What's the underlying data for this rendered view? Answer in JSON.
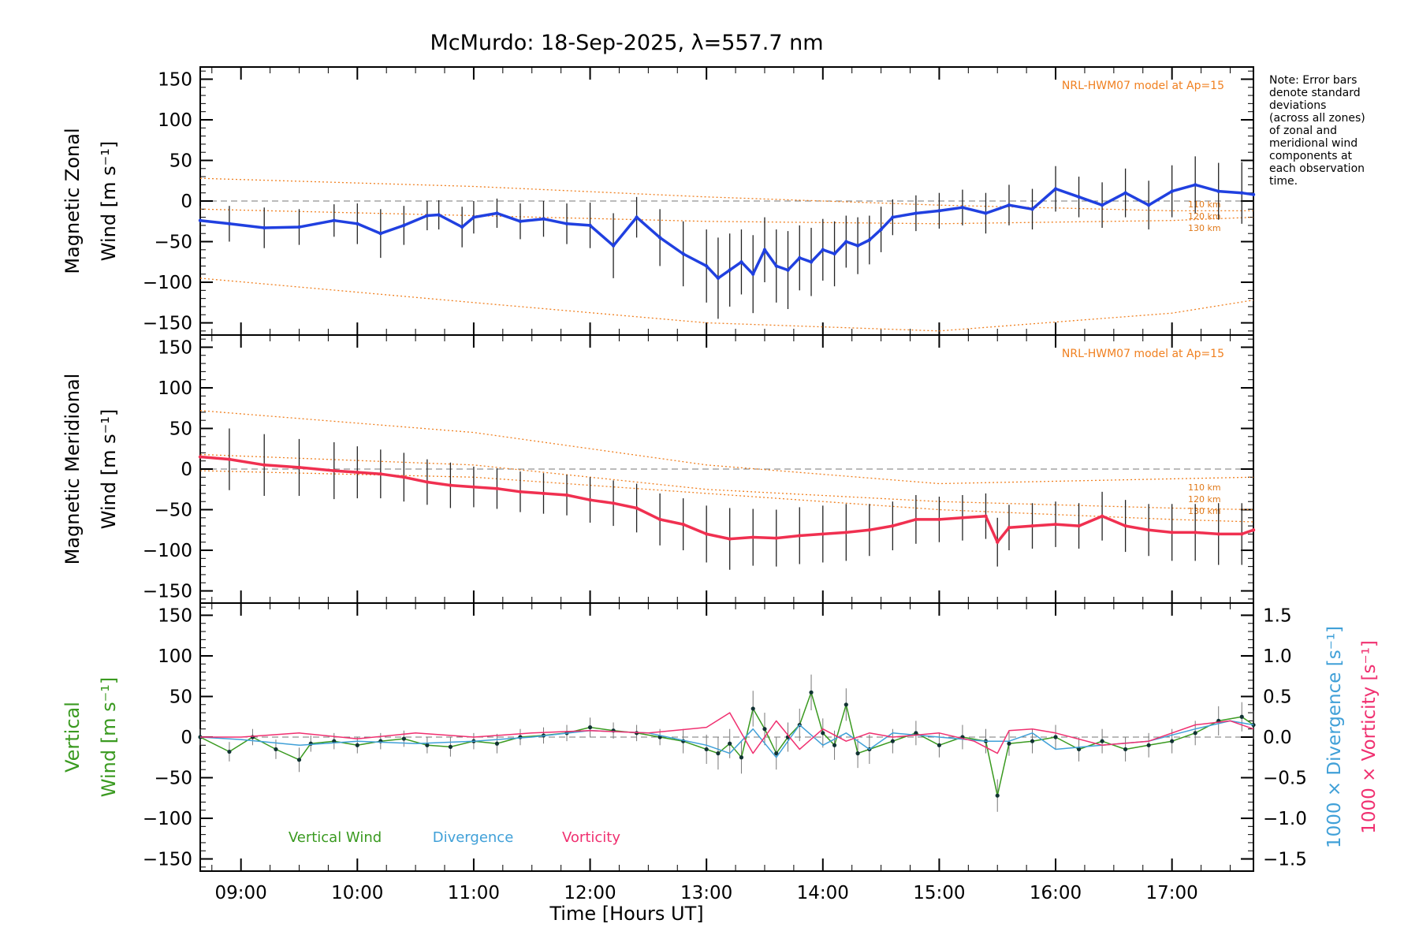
{
  "chart_data": {
    "type": "line",
    "title": "McMurdo: 18-Sep-2025, λ=557.7 nm",
    "xlabel": "Time [Hours UT]",
    "xlim": [
      8.65,
      17.7
    ],
    "x_ticks": [
      "09:00",
      "10:00",
      "11:00",
      "12:00",
      "13:00",
      "14:00",
      "15:00",
      "16:00",
      "17:00"
    ],
    "x_tick_values": [
      9,
      10,
      11,
      12,
      13,
      14,
      15,
      16,
      17
    ],
    "note": "Note: Error bars denote standard deviations (across all zones) of zonal and meridional wind components at each observation time.",
    "note_lines": [
      "Note: Error bars",
      "denote standard",
      "deviations",
      "(across all zones)",
      "of zonal and",
      "meridional wind",
      "components at",
      "each observation",
      "time."
    ],
    "y_ticks": [
      "150",
      "100",
      "50",
      "0",
      "−50",
      "−100",
      "−150"
    ],
    "y_tick_values": [
      150,
      100,
      50,
      0,
      -50,
      -100,
      -150
    ],
    "panels": [
      {
        "name": "zonal",
        "ylabel_line1": "Magnetic Zonal",
        "ylabel_line2": "Wind [m s⁻¹]",
        "ylim": [
          -165,
          165
        ],
        "model_label": "NRL-HWM07 model at Ap=15",
        "model_alt_labels": [
          "110 km",
          "120 km",
          "130 km"
        ],
        "model_curves": [
          {
            "name": "110 km",
            "x": [
              8.65,
              11,
              13,
              15,
              17,
              17.7
            ],
            "y": [
              28,
              18,
              5,
              -5,
              -12,
              -12
            ]
          },
          {
            "name": "120 km",
            "x": [
              8.65,
              11,
              13,
              15,
              17,
              17.7
            ],
            "y": [
              -10,
              -18,
              -25,
              -28,
              -24,
              -20
            ]
          },
          {
            "name": "130 km",
            "x": [
              8.65,
              11,
              13,
              15,
              17,
              17.7
            ],
            "y": [
              -95,
              -125,
              -150,
              -160,
              -138,
              -122
            ]
          }
        ],
        "series": [
          {
            "name": "Magnetic Zonal Wind",
            "color": "#2040e0",
            "x": [
              8.65,
              8.9,
              9.2,
              9.5,
              9.8,
              10.0,
              10.2,
              10.4,
              10.6,
              10.7,
              10.9,
              11.0,
              11.2,
              11.4,
              11.6,
              11.8,
              12.0,
              12.2,
              12.4,
              12.6,
              12.8,
              13.0,
              13.1,
              13.2,
              13.3,
              13.4,
              13.5,
              13.6,
              13.7,
              13.8,
              13.9,
              14.0,
              14.1,
              14.2,
              14.3,
              14.4,
              14.5,
              14.6,
              14.8,
              15.0,
              15.2,
              15.4,
              15.6,
              15.8,
              16.0,
              16.2,
              16.4,
              16.6,
              16.8,
              17.0,
              17.2,
              17.4,
              17.6,
              17.7
            ],
            "y": [
              -24,
              -28,
              -33,
              -32,
              -24,
              -28,
              -40,
              -30,
              -18,
              -17,
              -32,
              -20,
              -15,
              -25,
              -22,
              -28,
              -30,
              -55,
              -20,
              -45,
              -65,
              -80,
              -95,
              -85,
              -75,
              -90,
              -60,
              -80,
              -85,
              -70,
              -75,
              -60,
              -65,
              -50,
              -55,
              -48,
              -35,
              -20,
              -15,
              -12,
              -8,
              -15,
              -5,
              -10,
              15,
              5,
              -5,
              10,
              -5,
              12,
              20,
              12,
              10,
              8
            ],
            "err": [
              18,
              22,
              25,
              22,
              20,
              25,
              30,
              24,
              18,
              18,
              25,
              20,
              18,
              22,
              22,
              25,
              28,
              40,
              25,
              35,
              40,
              45,
              50,
              45,
              40,
              48,
              40,
              45,
              48,
              40,
              42,
              38,
              40,
              32,
              35,
              30,
              28,
              22,
              22,
              22,
              22,
              25,
              25,
              25,
              28,
              25,
              28,
              30,
              30,
              32,
              35,
              35,
              38,
              38
            ]
          }
        ]
      },
      {
        "name": "meridional",
        "ylabel_line1": "Magnetic Meridional",
        "ylabel_line2": "Wind [m s⁻¹]",
        "ylim": [
          -165,
          165
        ],
        "model_label": "NRL-HWM07 model at Ap=15",
        "model_alt_labels": [
          "110 km",
          "120 km",
          "130 km"
        ],
        "model_curves": [
          {
            "name": "110 km",
            "x": [
              8.65,
              11,
              13,
              15,
              17,
              17.7
            ],
            "y": [
              72,
              45,
              5,
              -18,
              -12,
              -10
            ]
          },
          {
            "name": "120 km",
            "x": [
              8.65,
              11,
              13,
              15,
              17,
              17.7
            ],
            "y": [
              18,
              5,
              -25,
              -40,
              -48,
              -50
            ]
          },
          {
            "name": "130 km",
            "x": [
              8.65,
              11,
              13,
              15,
              17,
              17.7
            ],
            "y": [
              -2,
              -10,
              -30,
              -50,
              -62,
              -65
            ]
          }
        ],
        "series": [
          {
            "name": "Magnetic Meridional Wind",
            "color": "#f03050",
            "x": [
              8.65,
              8.9,
              9.2,
              9.5,
              9.8,
              10.0,
              10.2,
              10.4,
              10.6,
              10.8,
              11.0,
              11.2,
              11.4,
              11.6,
              11.8,
              12.0,
              12.2,
              12.4,
              12.6,
              12.8,
              13.0,
              13.2,
              13.4,
              13.6,
              13.8,
              14.0,
              14.2,
              14.4,
              14.6,
              14.8,
              15.0,
              15.2,
              15.4,
              15.5,
              15.6,
              15.8,
              16.0,
              16.2,
              16.4,
              16.6,
              16.8,
              17.0,
              17.2,
              17.4,
              17.6,
              17.7
            ],
            "y": [
              15,
              12,
              5,
              2,
              -2,
              -4,
              -6,
              -10,
              -16,
              -20,
              -22,
              -24,
              -28,
              -30,
              -32,
              -38,
              -42,
              -48,
              -62,
              -68,
              -80,
              -86,
              -84,
              -85,
              -82,
              -80,
              -78,
              -75,
              -70,
              -62,
              -62,
              -60,
              -58,
              -90,
              -72,
              -70,
              -68,
              -70,
              -58,
              -70,
              -75,
              -78,
              -78,
              -80,
              -80,
              -75
            ],
            "err": [
              40,
              38,
              38,
              35,
              35,
              32,
              30,
              30,
              28,
              28,
              25,
              25,
              25,
              25,
              25,
              28,
              28,
              30,
              32,
              32,
              35,
              38,
              35,
              35,
              35,
              35,
              35,
              32,
              30,
              30,
              28,
              28,
              28,
              30,
              28,
              28,
              28,
              28,
              30,
              32,
              32,
              35,
              35,
              38,
              38,
              38
            ]
          }
        ]
      },
      {
        "name": "vertical",
        "ylabel_line1": "Vertical",
        "ylabel_line2": "Wind [m s⁻¹]",
        "ylim": [
          -165,
          165
        ],
        "right_axis_ticks": [
          "1.5",
          "1.0",
          "0.5",
          "0.0",
          "−0.5",
          "−1.0",
          "−1.5"
        ],
        "right_axis_values": [
          1.5,
          1.0,
          0.5,
          0.0,
          -0.5,
          -1.0,
          -1.5
        ],
        "right_label_1": "1000 × Divergence [s⁻¹]",
        "right_label_2": "1000 × Vorticity [s⁻¹]",
        "legend": [
          "Vertical Wind",
          "Divergence",
          "Vorticity"
        ],
        "series": [
          {
            "name": "Vertical Wind",
            "color": "#3a9a20",
            "x": [
              8.65,
              8.9,
              9.1,
              9.3,
              9.5,
              9.6,
              9.8,
              10.0,
              10.2,
              10.4,
              10.6,
              10.8,
              11.0,
              11.2,
              11.4,
              11.6,
              11.8,
              12.0,
              12.2,
              12.4,
              12.6,
              12.8,
              13.0,
              13.1,
              13.2,
              13.3,
              13.4,
              13.5,
              13.6,
              13.7,
              13.8,
              13.9,
              14.0,
              14.1,
              14.2,
              14.3,
              14.4,
              14.6,
              14.8,
              15.0,
              15.2,
              15.4,
              15.5,
              15.6,
              15.8,
              16.0,
              16.2,
              16.4,
              16.6,
              16.8,
              17.0,
              17.2,
              17.4,
              17.6,
              17.7
            ],
            "y": [
              0,
              -18,
              0,
              -15,
              -28,
              -8,
              -5,
              -10,
              -5,
              -2,
              -10,
              -12,
              -5,
              -8,
              0,
              2,
              5,
              12,
              8,
              5,
              0,
              -5,
              -15,
              -20,
              -8,
              -25,
              35,
              10,
              -20,
              0,
              15,
              55,
              5,
              -10,
              40,
              -20,
              -15,
              -5,
              5,
              -10,
              0,
              -5,
              -72,
              -8,
              -5,
              0,
              -15,
              -5,
              -15,
              -10,
              -5,
              5,
              20,
              25,
              15
            ],
            "err": [
              10,
              12,
              10,
              12,
              15,
              10,
              10,
              10,
              10,
              10,
              10,
              12,
              10,
              12,
              10,
              10,
              10,
              12,
              10,
              10,
              10,
              15,
              18,
              20,
              18,
              20,
              22,
              20,
              20,
              18,
              20,
              22,
              18,
              18,
              20,
              18,
              18,
              15,
              15,
              15,
              15,
              15,
              20,
              15,
              15,
              15,
              15,
              15,
              15,
              15,
              15,
              15,
              18,
              18,
              18
            ]
          },
          {
            "name": "Divergence",
            "color": "#40a0d8",
            "x": [
              8.65,
              9.0,
              9.5,
              10.0,
              10.5,
              11.0,
              11.5,
              12.0,
              12.5,
              13.0,
              13.2,
              13.4,
              13.6,
              13.8,
              14.0,
              14.2,
              14.4,
              14.6,
              15.0,
              15.4,
              15.6,
              15.8,
              16.0,
              16.4,
              16.8,
              17.2,
              17.5,
              17.7
            ],
            "y": [
              0,
              -3,
              -10,
              -5,
              -8,
              -5,
              0,
              8,
              5,
              -10,
              -20,
              10,
              -25,
              15,
              -10,
              5,
              -15,
              5,
              0,
              -5,
              -5,
              5,
              -15,
              -10,
              -5,
              10,
              20,
              15
            ]
          },
          {
            "name": "Vorticity",
            "color": "#f03070",
            "x": [
              8.65,
              9.0,
              9.5,
              10.0,
              10.5,
              11.0,
              11.5,
              12.0,
              12.5,
              13.0,
              13.2,
              13.4,
              13.6,
              13.8,
              14.0,
              14.2,
              14.4,
              14.6,
              15.0,
              15.3,
              15.5,
              15.6,
              15.8,
              16.0,
              16.4,
              16.8,
              17.2,
              17.5,
              17.7
            ],
            "y": [
              0,
              0,
              5,
              -2,
              5,
              0,
              5,
              8,
              5,
              12,
              30,
              -20,
              20,
              -15,
              10,
              -5,
              5,
              0,
              5,
              -5,
              -20,
              8,
              10,
              5,
              -10,
              -5,
              15,
              20,
              10
            ]
          }
        ]
      }
    ]
  }
}
